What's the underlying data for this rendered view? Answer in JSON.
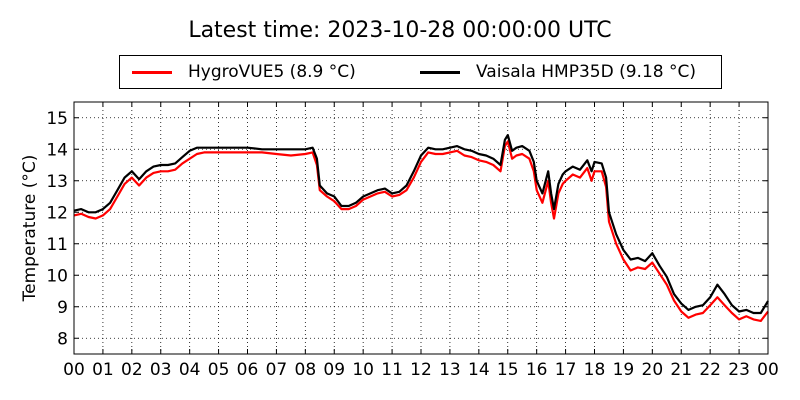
{
  "chart_data": {
    "type": "line",
    "title": "Latest time: 2023-10-28 00:00:00 UTC",
    "xlabel": "",
    "ylabel": "Temperature (°C)",
    "xlim": [
      0,
      24
    ],
    "ylim": [
      7.5,
      15.5
    ],
    "x_ticks": [
      "00",
      "01",
      "02",
      "03",
      "04",
      "05",
      "06",
      "07",
      "08",
      "09",
      "10",
      "11",
      "12",
      "13",
      "14",
      "15",
      "16",
      "17",
      "18",
      "19",
      "20",
      "21",
      "22",
      "23",
      "00"
    ],
    "y_ticks": [
      8,
      9,
      10,
      11,
      12,
      13,
      14,
      15
    ],
    "grid": true,
    "legend_placement": "top-center",
    "series": [
      {
        "name": "HygroVUE5 (8.9 °C)",
        "color": "#ff0000",
        "x": [
          0,
          0.25,
          0.5,
          0.75,
          1.0,
          1.25,
          1.5,
          1.75,
          2.0,
          2.25,
          2.5,
          2.75,
          3.0,
          3.25,
          3.5,
          3.75,
          4.0,
          4.25,
          4.5,
          5.0,
          5.5,
          6.0,
          6.5,
          7.0,
          7.5,
          8.0,
          8.25,
          8.4,
          8.5,
          8.75,
          9.0,
          9.25,
          9.5,
          9.75,
          10.0,
          10.25,
          10.5,
          10.75,
          11.0,
          11.25,
          11.5,
          11.75,
          12.0,
          12.25,
          12.5,
          12.75,
          13.0,
          13.25,
          13.5,
          13.75,
          14.0,
          14.25,
          14.5,
          14.75,
          14.9,
          15.0,
          15.15,
          15.3,
          15.5,
          15.75,
          15.9,
          16.0,
          16.2,
          16.4,
          16.5,
          16.6,
          16.75,
          16.9,
          17.0,
          17.25,
          17.5,
          17.75,
          17.9,
          18.0,
          18.25,
          18.4,
          18.5,
          18.75,
          19.0,
          19.25,
          19.5,
          19.75,
          20.0,
          20.25,
          20.5,
          20.75,
          21.0,
          21.25,
          21.5,
          21.75,
          22.0,
          22.25,
          22.5,
          22.75,
          23.0,
          23.25,
          23.5,
          23.75,
          24.0
        ],
        "y": [
          11.9,
          11.95,
          11.85,
          11.8,
          11.9,
          12.1,
          12.5,
          12.9,
          13.1,
          12.85,
          13.1,
          13.25,
          13.3,
          13.3,
          13.35,
          13.55,
          13.7,
          13.85,
          13.9,
          13.9,
          13.9,
          13.9,
          13.9,
          13.85,
          13.8,
          13.85,
          13.9,
          13.5,
          12.7,
          12.5,
          12.35,
          12.1,
          12.1,
          12.2,
          12.4,
          12.5,
          12.6,
          12.65,
          12.5,
          12.55,
          12.7,
          13.1,
          13.6,
          13.9,
          13.85,
          13.85,
          13.9,
          13.95,
          13.8,
          13.75,
          13.65,
          13.6,
          13.5,
          13.3,
          14.1,
          14.25,
          13.7,
          13.8,
          13.85,
          13.7,
          13.3,
          12.7,
          12.3,
          13.0,
          12.3,
          11.8,
          12.6,
          12.9,
          13.0,
          13.2,
          13.1,
          13.4,
          13.0,
          13.3,
          13.3,
          12.8,
          11.7,
          11.0,
          10.5,
          10.15,
          10.25,
          10.2,
          10.4,
          10.05,
          9.7,
          9.2,
          8.85,
          8.65,
          8.75,
          8.8,
          9.05,
          9.3,
          9.05,
          8.8,
          8.6,
          8.7,
          8.6,
          8.55,
          8.85
        ]
      },
      {
        "name": "Vaisala HMP35D (9.18 °C)",
        "color": "#000000",
        "x": [
          0,
          0.25,
          0.5,
          0.75,
          1.0,
          1.25,
          1.5,
          1.75,
          2.0,
          2.25,
          2.5,
          2.75,
          3.0,
          3.25,
          3.5,
          3.75,
          4.0,
          4.25,
          4.5,
          5.0,
          5.5,
          6.0,
          6.5,
          7.0,
          7.5,
          8.0,
          8.25,
          8.4,
          8.5,
          8.75,
          9.0,
          9.25,
          9.5,
          9.75,
          10.0,
          10.25,
          10.5,
          10.75,
          11.0,
          11.25,
          11.5,
          11.75,
          12.0,
          12.25,
          12.5,
          12.75,
          13.0,
          13.25,
          13.5,
          13.75,
          14.0,
          14.25,
          14.5,
          14.75,
          14.9,
          15.0,
          15.15,
          15.3,
          15.5,
          15.75,
          15.9,
          16.0,
          16.2,
          16.4,
          16.5,
          16.6,
          16.75,
          16.9,
          17.0,
          17.25,
          17.5,
          17.75,
          17.9,
          18.0,
          18.25,
          18.4,
          18.5,
          18.75,
          19.0,
          19.25,
          19.5,
          19.75,
          20.0,
          20.25,
          20.5,
          20.75,
          21.0,
          21.25,
          21.5,
          21.75,
          22.0,
          22.25,
          22.5,
          22.75,
          23.0,
          23.25,
          23.5,
          23.75,
          24.0
        ],
        "y": [
          12.05,
          12.1,
          12.0,
          12.0,
          12.1,
          12.3,
          12.7,
          13.1,
          13.3,
          13.05,
          13.3,
          13.45,
          13.5,
          13.5,
          13.55,
          13.75,
          13.95,
          14.05,
          14.05,
          14.05,
          14.05,
          14.05,
          14.0,
          14.0,
          14.0,
          14.0,
          14.05,
          13.7,
          12.85,
          12.6,
          12.5,
          12.2,
          12.2,
          12.3,
          12.5,
          12.6,
          12.7,
          12.75,
          12.6,
          12.65,
          12.85,
          13.3,
          13.8,
          14.05,
          14.0,
          14.0,
          14.05,
          14.1,
          14.0,
          13.95,
          13.85,
          13.8,
          13.7,
          13.5,
          14.3,
          14.45,
          13.95,
          14.05,
          14.1,
          13.95,
          13.6,
          13.0,
          12.6,
          13.3,
          12.6,
          12.1,
          12.9,
          13.2,
          13.3,
          13.45,
          13.35,
          13.65,
          13.3,
          13.6,
          13.55,
          13.1,
          12.0,
          11.3,
          10.8,
          10.5,
          10.55,
          10.45,
          10.7,
          10.3,
          9.95,
          9.4,
          9.1,
          8.9,
          9.0,
          9.05,
          9.3,
          9.7,
          9.4,
          9.05,
          8.85,
          8.9,
          8.8,
          8.8,
          9.18
        ]
      }
    ]
  }
}
